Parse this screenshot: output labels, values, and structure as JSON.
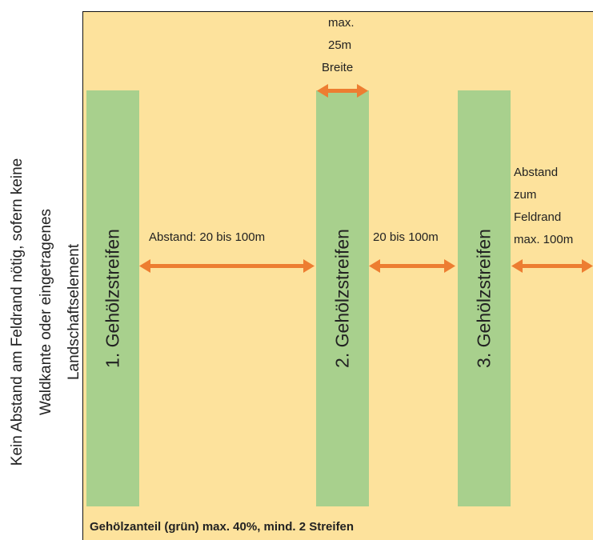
{
  "side_note": {
    "lines": [
      "Kein Abstand am Feldrand nötig, sofern keine",
      "Waldkante oder eingetragenes",
      "Landschaftselement"
    ]
  },
  "strips": [
    {
      "label": "1. Gehölzstreifen"
    },
    {
      "label": "2. Gehölzstreifen"
    },
    {
      "label": "3. Gehölzstreifen"
    }
  ],
  "width_note": {
    "lines": [
      "max.",
      "25m",
      "Breite"
    ]
  },
  "gap1": "Abstand: 20 bis 100m",
  "gap2": "20 bis 100m",
  "edge_note": {
    "lines": [
      "Abstand",
      "zum",
      "Feldrand",
      "max. 100m"
    ]
  },
  "footer": "Gehölzanteil (grün) max. 40%, mind. 2 Streifen",
  "colors": {
    "field": "#fde29c",
    "strip": "#a8d08d",
    "arrow": "#ed7d31"
  }
}
